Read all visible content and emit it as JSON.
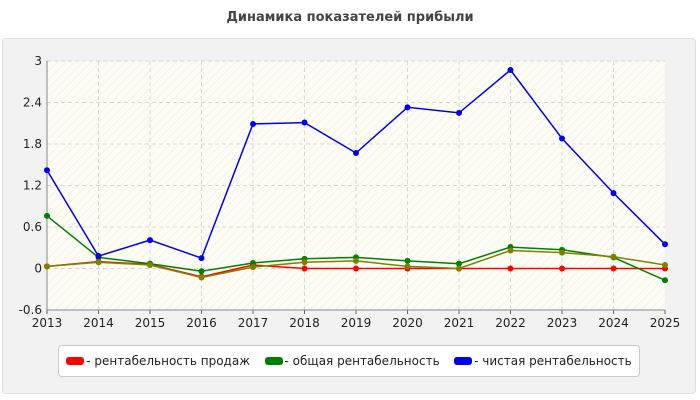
{
  "chart_data": {
    "type": "line",
    "title": "Динамика показателей прибыли",
    "xlabel": "",
    "ylabel": "",
    "x": [
      "2013",
      "2014",
      "2015",
      "2016",
      "2017",
      "2018",
      "2019",
      "2020",
      "2021",
      "2022",
      "2023",
      "2024",
      "2025"
    ],
    "ylim": [
      -0.6,
      3
    ],
    "yticks": [
      "-0.6",
      "0",
      "0.6",
      "1.2",
      "1.8",
      "2.4",
      "3"
    ],
    "grid": true,
    "legend_position": "bottom",
    "series": [
      {
        "name": "- рентабельность продаж",
        "color": "#ff0000",
        "values": [
          0.03,
          0.1,
          0.06,
          -0.12,
          0.05,
          0.0,
          0.0,
          0.0,
          0.0,
          0.0,
          0.0,
          0.0,
          0.0
        ]
      },
      {
        "name": "- общая рентабельность",
        "color": "#008000",
        "values": [
          0.76,
          0.16,
          0.07,
          -0.04,
          0.08,
          0.14,
          0.16,
          0.11,
          0.07,
          0.31,
          0.27,
          0.16,
          -0.17
        ]
      },
      {
        "name": "- чистая рентабельность",
        "color": "#0000ee",
        "values": [
          1.42,
          0.18,
          0.41,
          0.15,
          2.09,
          2.11,
          1.67,
          2.33,
          2.25,
          2.87,
          1.88,
          1.09,
          0.35
        ]
      },
      {
        "name": "",
        "color": "#808000",
        "values": [
          0.03,
          0.09,
          0.05,
          -0.13,
          0.02,
          0.09,
          0.11,
          0.03,
          0.0,
          0.26,
          0.23,
          0.17,
          0.05
        ]
      }
    ]
  }
}
